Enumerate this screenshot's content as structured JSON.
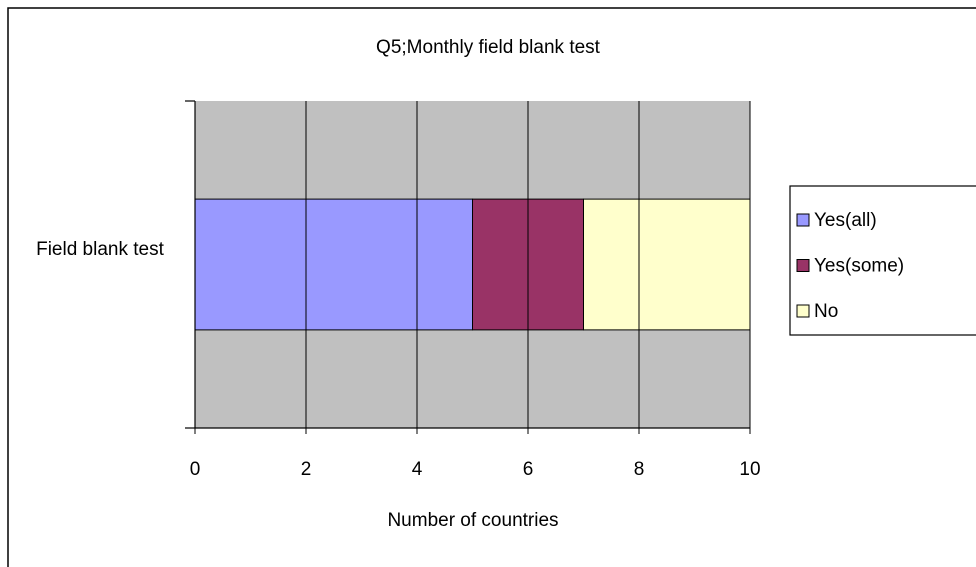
{
  "chart_data": {
    "type": "bar",
    "orientation": "horizontal",
    "stacked": true,
    "title": "Q5;Monthly field blank test",
    "x_label": "Number of countries",
    "categories": [
      "Field blank test"
    ],
    "series": [
      {
        "name": "Yes(all)",
        "color": "#9999ff",
        "values": [
          5
        ]
      },
      {
        "name": "Yes(some)",
        "color": "#993366",
        "values": [
          2
        ]
      },
      {
        "name": "No",
        "color": "#ffffcc",
        "values": [
          3
        ]
      }
    ],
    "xlim": [
      0,
      10
    ],
    "xticks": [
      0,
      2,
      4,
      6,
      8,
      10
    ],
    "grid": true,
    "legend": "right"
  }
}
